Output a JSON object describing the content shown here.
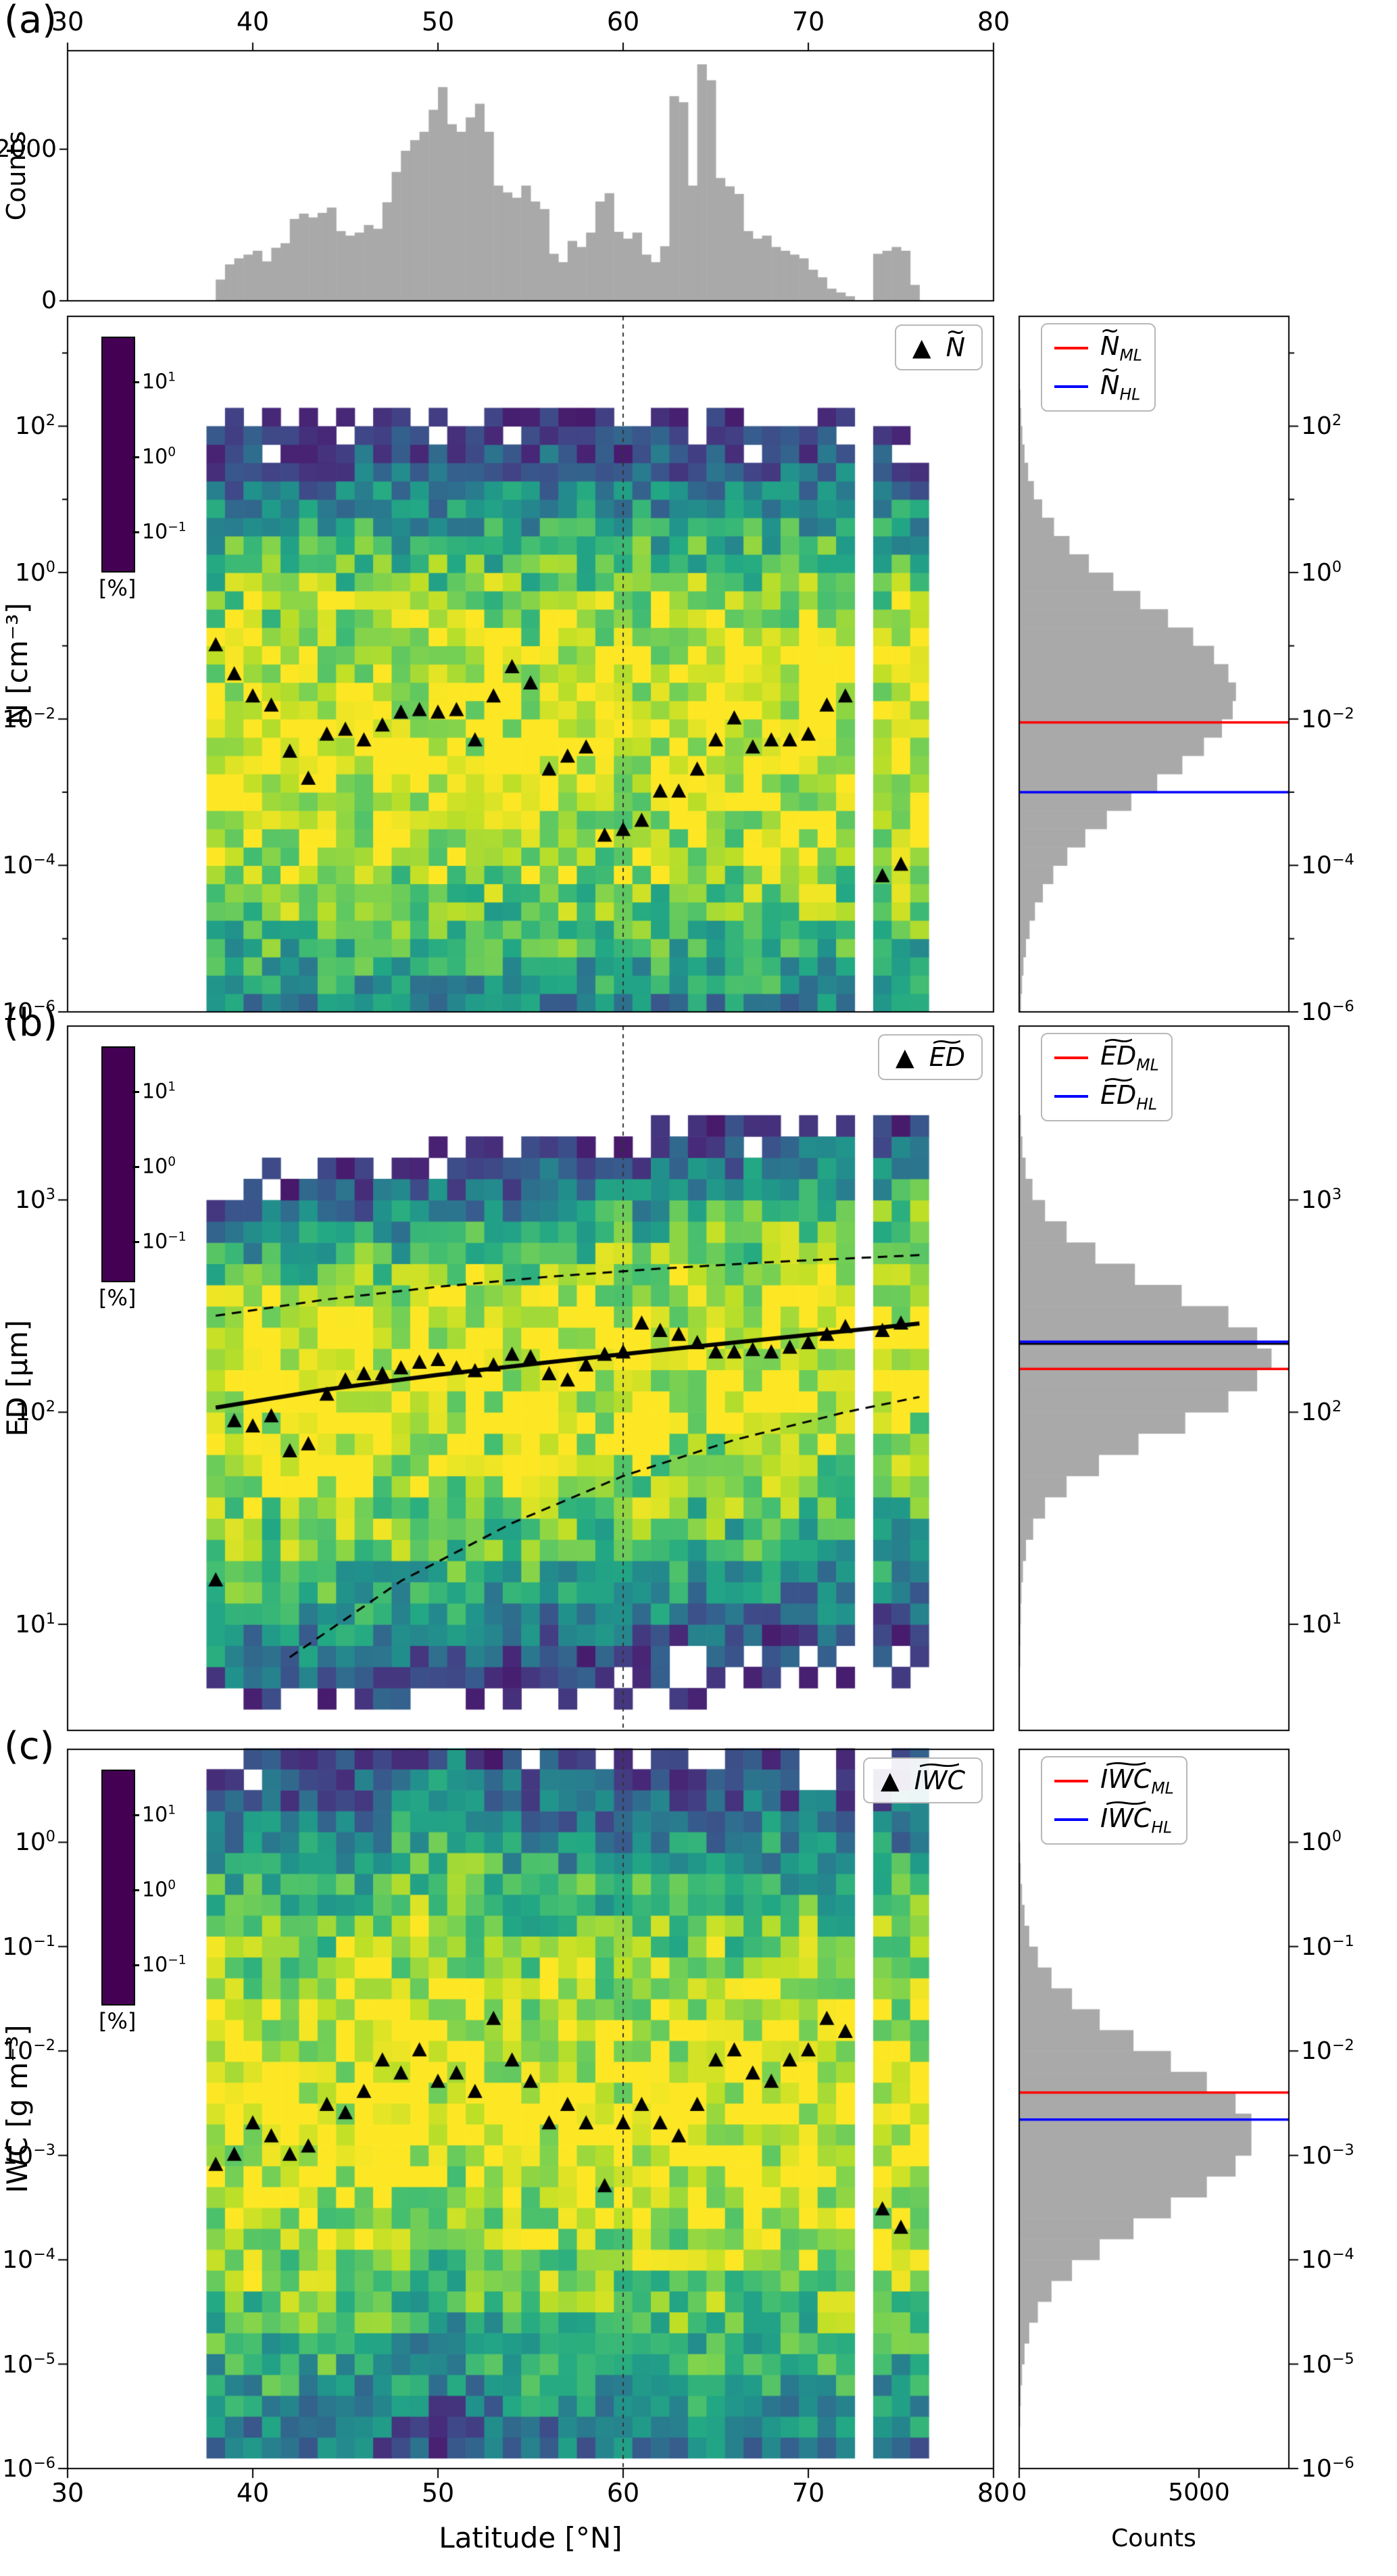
{
  "panels": {
    "a": {
      "letter": "(a)"
    },
    "b": {
      "letter": "(b)"
    },
    "c": {
      "letter": "(c)"
    }
  },
  "axis": {
    "x_ticks": [
      30,
      40,
      50,
      60,
      70,
      80
    ],
    "xlabel": "Latitude [°N]",
    "bottom_counts_label": "Counts",
    "counts_ticks": [
      0,
      5000
    ]
  },
  "colors": {
    "bar_gray": "#a9a9a9",
    "triangle": "#000000",
    "ml_red": "#ff0000",
    "hl_blue": "#0000ff",
    "vline": "#333333",
    "fit_black": "#000000"
  },
  "chart_data": [
    {
      "type": "bar",
      "name": "latitude-counts-histogram",
      "ylabel": "Counts",
      "x_range": [
        30,
        80
      ],
      "ylim": [
        0,
        3300
      ],
      "yticks": [
        0,
        2000
      ],
      "xticks": [
        30,
        40,
        50,
        60,
        70,
        80
      ],
      "bin_start": 38.0,
      "bin_width": 0.5,
      "counts": [
        280,
        480,
        560,
        610,
        660,
        520,
        700,
        760,
        1080,
        1150,
        1100,
        1160,
        1230,
        920,
        860,
        900,
        1000,
        950,
        1300,
        1700,
        1980,
        2120,
        2230,
        2520,
        2820,
        2330,
        2230,
        2420,
        2600,
        2230,
        1520,
        1430,
        1360,
        1520,
        1310,
        1210,
        620,
        510,
        790,
        710,
        900,
        1310,
        1420,
        910,
        820,
        900,
        610,
        510,
        720,
        2700,
        2620,
        1520,
        3120,
        2910,
        1620,
        1510,
        1410,
        920,
        820,
        860,
        710,
        660,
        610,
        560,
        410,
        310,
        160,
        110,
        60,
        0,
        0,
        620,
        660,
        710,
        660,
        210
      ]
    },
    {
      "type": "heatmap",
      "name": "N-vs-latitude",
      "ylabel": "N [cm⁻³]",
      "x_range": [
        30,
        80
      ],
      "y_log_range": [
        -6,
        3.5
      ],
      "ytick_exponents": [
        2,
        0,
        -2,
        -4,
        -6
      ],
      "vline_x": 60,
      "colorbar": {
        "label": "[%]",
        "tick_exponents": [
          1,
          0,
          -1
        ]
      },
      "legend": {
        "marker": "triangle",
        "base": "N"
      },
      "medians": {
        "lat": [
          38,
          39,
          40,
          41,
          42,
          43,
          44,
          45,
          46,
          47,
          48,
          49,
          50,
          51,
          52,
          53,
          54,
          55,
          56,
          57,
          58,
          59,
          60,
          61,
          62,
          63,
          64,
          65,
          66,
          67,
          68,
          69,
          70,
          71,
          72,
          74,
          75
        ],
        "value": [
          0.1,
          0.04,
          0.02,
          0.015,
          0.0035,
          0.0015,
          0.006,
          0.007,
          0.005,
          0.008,
          0.012,
          0.013,
          0.012,
          0.013,
          0.005,
          0.02,
          0.05,
          0.03,
          0.002,
          0.003,
          0.004,
          0.00025,
          0.0003,
          0.0004,
          0.001,
          0.001,
          0.002,
          0.005,
          0.01,
          0.004,
          0.005,
          0.005,
          0.006,
          0.015,
          0.02,
          7e-05,
          0.0001
        ]
      },
      "heat": {
        "lat_min": 37.5,
        "lat_max": 76.5,
        "gap": [
          72.5,
          73.5
        ],
        "cell_deg": 1,
        "cell_dec": 0.25,
        "log_lo": -6,
        "log_hi": 2.2,
        "ridge": -2.2,
        "ridge_slope": 0,
        "sigma_hi": 1.15,
        "sigma_lo": 1.45,
        "seed": 42,
        "peak_pct": 30,
        "cut_pct": 0.05
      },
      "marginal": {
        "log_start": -6,
        "log_step": 0.25,
        "counts_max": 7500,
        "counts": [
          30,
          60,
          100,
          170,
          270,
          420,
          640,
          930,
          1320,
          1820,
          2420,
          3100,
          3820,
          4520,
          5120,
          5620,
          5920,
          6010,
          5800,
          5400,
          4820,
          4120,
          3350,
          2600,
          1920,
          1380,
          950,
          620,
          390,
          230,
          130,
          70,
          35,
          15,
          6,
          2,
          1,
          0
        ],
        "lines": [
          {
            "base": "N",
            "sub": "ML",
            "color": "#ff0000",
            "value": 0.009
          },
          {
            "base": "N",
            "sub": "HL",
            "color": "#0000ff",
            "value": 0.001
          }
        ]
      }
    },
    {
      "type": "heatmap",
      "name": "ED-vs-latitude",
      "ylabel": "ED [μm]",
      "x_range": [
        30,
        80
      ],
      "y_log_range": [
        0.5,
        3.82
      ],
      "ytick_exponents": [
        3,
        2,
        1
      ],
      "vline_x": 60,
      "colorbar": {
        "label": "[%]",
        "tick_exponents": [
          1,
          0,
          -1
        ]
      },
      "legend": {
        "marker": "triangle",
        "base": "ED"
      },
      "medians": {
        "lat": [
          38,
          39,
          40,
          41,
          42,
          43,
          44,
          45,
          46,
          47,
          48,
          49,
          50,
          51,
          52,
          53,
          54,
          55,
          56,
          57,
          58,
          59,
          60,
          61,
          62,
          63,
          64,
          65,
          66,
          67,
          68,
          69,
          70,
          71,
          72,
          74,
          75
        ],
        "value": [
          16,
          90,
          85,
          95,
          65,
          70,
          120,
          140,
          150,
          150,
          160,
          170,
          175,
          160,
          155,
          165,
          185,
          180,
          150,
          140,
          165,
          185,
          190,
          260,
          240,
          230,
          210,
          190,
          190,
          195,
          190,
          200,
          210,
          230,
          250,
          240,
          260
        ]
      },
      "heat": {
        "lat_min": 37.5,
        "lat_max": 76.5,
        "gap": [
          72.5,
          73.5
        ],
        "cell_deg": 1,
        "cell_dec": 0.1,
        "log_lo": 0.6,
        "log_hi": 3.4,
        "ridge": 2.05,
        "ridge_slope": 0.009,
        "sigma_hi": 0.28,
        "sigma_lo": 0.45,
        "seed": 7,
        "peak_pct": 30,
        "cut_pct": 0.05
      },
      "fit": {
        "median_curve": {
          "lat": [
            38,
            44,
            50,
            56,
            62,
            68,
            76
          ],
          "ed": [
            105,
            128,
            150,
            172,
            196,
            222,
            262
          ]
        },
        "upper_dashed": {
          "lat": [
            38,
            44,
            50,
            56,
            62,
            68,
            76
          ],
          "ed": [
            285,
            340,
            390,
            435,
            475,
            510,
            550
          ]
        },
        "lower_dashed": {
          "lat": [
            42,
            48,
            54,
            60,
            66,
            72,
            76
          ],
          "ed": [
            7,
            16,
            30,
            50,
            74,
            100,
            118
          ]
        }
      },
      "marginal": {
        "log_start": 0.6,
        "log_step": 0.1,
        "counts_max": 7500,
        "counts": [
          5,
          8,
          12,
          18,
          28,
          45,
          85,
          170,
          370,
          700,
          1300,
          2200,
          3300,
          4600,
          5800,
          6600,
          7000,
          6600,
          5800,
          4500,
          3200,
          2100,
          1300,
          700,
          350,
          160,
          70,
          30
        ],
        "median_line": {
          "color": "#000000",
          "value": 210
        },
        "lines": [
          {
            "base": "ED",
            "sub": "ML",
            "color": "#ff0000",
            "value": 160
          },
          {
            "base": "ED",
            "sub": "HL",
            "color": "#0000ff",
            "value": 215
          }
        ]
      }
    },
    {
      "type": "heatmap",
      "name": "IWC-vs-latitude",
      "ylabel": "IWC [g m⁻³]",
      "x_range": [
        30,
        80
      ],
      "y_log_range": [
        -6,
        0.89
      ],
      "ytick_exponents": [
        0,
        -1,
        -2,
        -3,
        -4,
        -5,
        -6
      ],
      "vline_x": 60,
      "colorbar": {
        "label": "[%]",
        "tick_exponents": [
          1,
          0,
          -1
        ]
      },
      "legend": {
        "marker": "triangle",
        "base": "IWC"
      },
      "medians": {
        "lat": [
          38,
          39,
          40,
          41,
          42,
          43,
          44,
          45,
          46,
          47,
          48,
          49,
          50,
          51,
          52,
          53,
          54,
          55,
          56,
          57,
          58,
          59,
          60,
          61,
          62,
          63,
          64,
          65,
          66,
          67,
          68,
          69,
          70,
          71,
          72,
          74,
          75
        ],
        "value": [
          0.0008,
          0.001,
          0.002,
          0.0015,
          0.001,
          0.0012,
          0.003,
          0.0025,
          0.004,
          0.008,
          0.006,
          0.01,
          0.005,
          0.006,
          0.004,
          0.02,
          0.008,
          0.005,
          0.002,
          0.003,
          0.002,
          0.0005,
          0.002,
          0.003,
          0.002,
          0.0015,
          0.003,
          0.008,
          0.01,
          0.006,
          0.005,
          0.008,
          0.01,
          0.02,
          0.015,
          0.0003,
          0.0002
        ]
      },
      "heat": {
        "lat_min": 37.5,
        "lat_max": 76.5,
        "gap": [
          72.5,
          73.5
        ],
        "cell_deg": 1,
        "cell_dec": 0.2,
        "log_lo": -5.9,
        "log_hi": 0.8,
        "ridge": -2.6,
        "ridge_slope": 0,
        "sigma_hi": 0.95,
        "sigma_lo": 1.15,
        "seed": 99,
        "peak_pct": 30,
        "cut_pct": 0.05,
        "bump": {
          "center": 50,
          "sigma": 2.5,
          "amp": 0.5
        }
      },
      "marginal": {
        "log_start": -6,
        "log_step": 0.2,
        "counts_max": 7500,
        "counts": [
          3,
          5,
          10,
          25,
          60,
          130,
          260,
          500,
          880,
          1450,
          2220,
          3160,
          4200,
          5200,
          6000,
          6440,
          6440,
          6000,
          5200,
          4200,
          3160,
          2220,
          1450,
          880,
          500,
          260,
          130,
          60,
          25,
          10,
          4,
          2,
          1,
          0
        ],
        "lines": [
          {
            "base": "IWC",
            "sub": "ML",
            "color": "#ff0000",
            "value": 0.004
          },
          {
            "base": "IWC",
            "sub": "HL",
            "color": "#0000ff",
            "value": 0.0022
          }
        ]
      }
    }
  ]
}
